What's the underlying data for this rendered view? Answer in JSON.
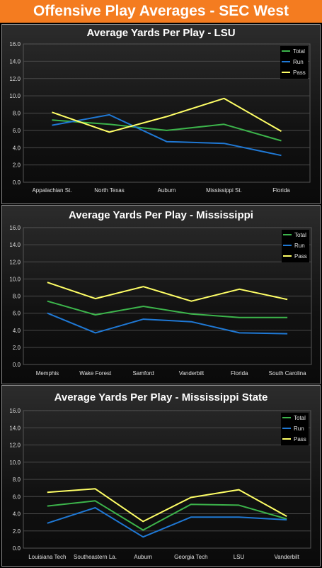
{
  "header": {
    "title": "Offensive Play Averages - SEC West"
  },
  "colors": {
    "total": "#3cb44b",
    "run": "#1f78d4",
    "pass": "#ffff66",
    "header": "#f47c20"
  },
  "chart_data": [
    {
      "type": "line",
      "title": "Average Yards Per Play - LSU",
      "categories": [
        "Appalachian St.",
        "North Texas",
        "Auburn",
        "Mississippi St.",
        "Florida"
      ],
      "ylim": [
        0,
        16
      ],
      "yticks": [
        "0.0",
        "2.0",
        "4.0",
        "6.0",
        "8.0",
        "10.0",
        "12.0",
        "14.0",
        "16.0"
      ],
      "grid": true,
      "legend": "top-right",
      "series": [
        {
          "name": "Total",
          "values": [
            7.2,
            6.7,
            6.0,
            6.7,
            4.8
          ]
        },
        {
          "name": "Run",
          "values": [
            6.6,
            7.8,
            4.7,
            4.5,
            3.1
          ]
        },
        {
          "name": "Pass",
          "values": [
            8.1,
            5.8,
            7.6,
            9.7,
            5.9
          ]
        }
      ]
    },
    {
      "type": "line",
      "title": "Average Yards Per Play - Mississippi",
      "categories": [
        "Memphis",
        "Wake Forest",
        "Samford",
        "Vanderbilt",
        "Florida",
        "South Carolina"
      ],
      "ylim": [
        0,
        16
      ],
      "yticks": [
        "0.0",
        "2.0",
        "4.0",
        "6.0",
        "8.0",
        "10.0",
        "12.0",
        "14.0",
        "16.0"
      ],
      "grid": true,
      "legend": "top-right",
      "series": [
        {
          "name": "Total",
          "values": [
            7.4,
            5.8,
            6.8,
            5.9,
            5.5,
            5.5
          ]
        },
        {
          "name": "Run",
          "values": [
            6.0,
            3.7,
            5.3,
            5.0,
            3.7,
            3.6
          ]
        },
        {
          "name": "Pass",
          "values": [
            9.6,
            7.7,
            9.1,
            7.4,
            8.8,
            7.6
          ]
        }
      ]
    },
    {
      "type": "line",
      "title": "Average Yards Per Play - Mississippi State",
      "categories": [
        "Louisiana Tech",
        "Southeastern La.",
        "Auburn",
        "Georgia Tech",
        "LSU",
        "Vanderbilt"
      ],
      "ylim": [
        0,
        16
      ],
      "yticks": [
        "0.0",
        "2.0",
        "4.0",
        "6.0",
        "8.0",
        "10.0",
        "12.0",
        "14.0",
        "16.0"
      ],
      "grid": true,
      "legend": "top-right",
      "series": [
        {
          "name": "Total",
          "values": [
            4.9,
            5.5,
            2.1,
            5.1,
            5.0,
            3.4
          ]
        },
        {
          "name": "Run",
          "values": [
            2.9,
            4.7,
            1.3,
            3.6,
            3.6,
            3.3
          ]
        },
        {
          "name": "Pass",
          "values": [
            6.5,
            6.9,
            3.1,
            5.9,
            6.8,
            3.7
          ]
        }
      ]
    }
  ]
}
